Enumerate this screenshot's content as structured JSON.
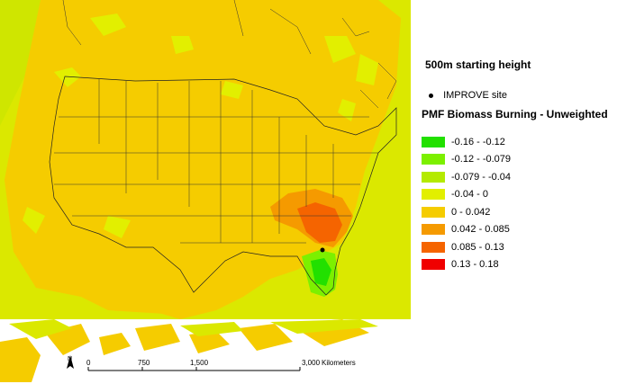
{
  "map": {
    "subtitle": "500m starting height",
    "site_label": "IMPROVE site",
    "legend_title": "PMF Biomass Burning - Unweighted",
    "legend_items": [
      {
        "label": "-0.16 - -0.12",
        "color": "#22e000"
      },
      {
        "label": "-0.12 - -0.079",
        "color": "#7cf000"
      },
      {
        "label": "-0.079 - -0.04",
        "color": "#b4ea00"
      },
      {
        "label": "-0.04 - 0",
        "color": "#e2ef00"
      },
      {
        "label": "0 - 0.042",
        "color": "#f5cc00"
      },
      {
        "label": "0.042 - 0.085",
        "color": "#f59a00"
      },
      {
        "label": "0.085 - 0.13",
        "color": "#f56400"
      },
      {
        "label": "0.13 - 0.18",
        "color": "#f00000"
      }
    ],
    "scale_bar": {
      "ticks": [
        "0",
        "750",
        "1,500",
        "3,000"
      ],
      "unit": "Kilometers"
    },
    "north_arrow_label": "N"
  }
}
